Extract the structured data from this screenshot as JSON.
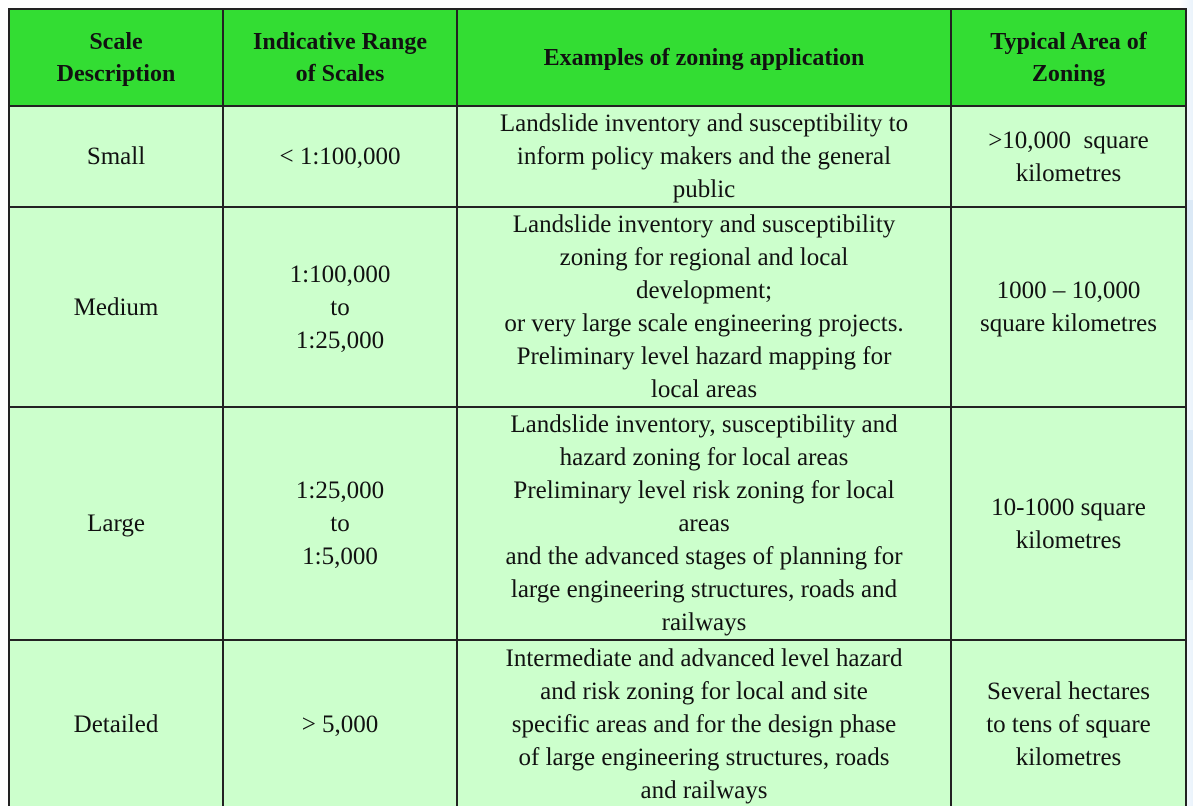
{
  "table": {
    "headers": [
      [
        "Scale",
        "Description"
      ],
      [
        "Indicative Range",
        "of Scales"
      ],
      [
        "Examples of zoning application"
      ],
      [
        "Typical Area of",
        "Zoning"
      ]
    ],
    "rows": [
      {
        "scale": "Small",
        "range": [
          "< 1:100,000"
        ],
        "examples": [
          "Landslide inventory and susceptibility to",
          "inform policy makers and the general",
          "public"
        ],
        "area": [
          ">10,000  square",
          "kilometres"
        ]
      },
      {
        "scale": "Medium",
        "range": [
          "1:100,000",
          "to",
          "1:25,000"
        ],
        "examples": [
          "Landslide inventory and susceptibility",
          "zoning for regional and local",
          "development;",
          "or very large scale engineering projects.",
          "Preliminary level hazard mapping for",
          "local areas"
        ],
        "area": [
          "1000 – 10,000",
          "square kilometres"
        ]
      },
      {
        "scale": "Large",
        "range": [
          "1:25,000",
          "to",
          "1:5,000"
        ],
        "examples": [
          "Landslide inventory, susceptibility and",
          "hazard zoning for local areas",
          "Preliminary level risk zoning for local",
          "areas",
          "and the advanced stages of planning for",
          "large engineering structures, roads and",
          "railways"
        ],
        "area": [
          "10-1000 square",
          "kilometres"
        ]
      },
      {
        "scale": "Detailed",
        "range": [
          "> 5,000"
        ],
        "examples": [
          "Intermediate and advanced level hazard",
          "and risk zoning for local and site",
          "specific areas and for the design phase",
          "of large engineering structures, roads",
          "and railways"
        ],
        "area": [
          "Several hectares",
          "to tens of square",
          "kilometres"
        ]
      }
    ]
  },
  "colors": {
    "header_bg": "#33dd33",
    "body_bg": "#ccffcc",
    "border": "#222222"
  }
}
